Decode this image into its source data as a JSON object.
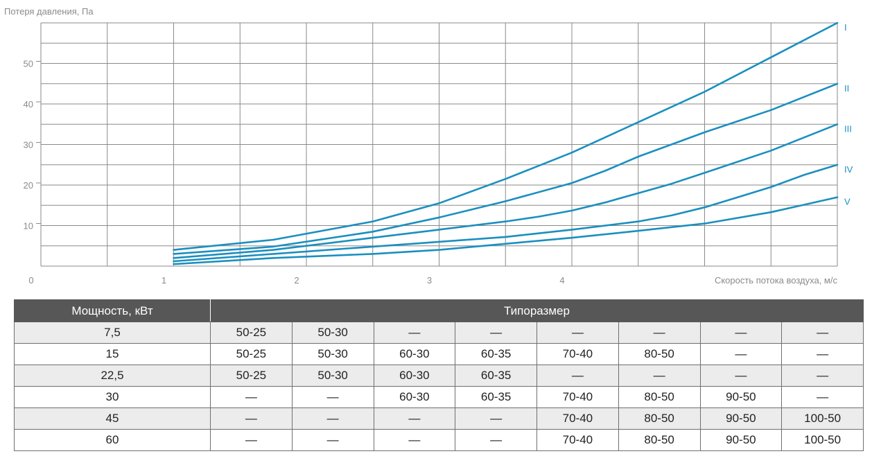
{
  "chart_data": {
    "type": "line",
    "ylabel": "Потеря давления, Па",
    "xlabel": "Скорость потока воздуха, м/с",
    "xlim": [
      0,
      6
    ],
    "ylim": [
      0,
      60
    ],
    "x_ticks": [
      "0",
      "1",
      "2",
      "3",
      "4"
    ],
    "y_ticks": [
      "10",
      "20",
      "30",
      "40",
      "50"
    ],
    "series_color": "#1a8fbf",
    "series": [
      {
        "name": "I",
        "x": [
          1,
          1.75,
          2.5,
          3,
          3.5,
          4,
          4.5,
          5,
          5.5,
          6
        ],
        "y": [
          4,
          6.5,
          11,
          15.5,
          21.5,
          28,
          35.5,
          43,
          51.5,
          60
        ]
      },
      {
        "name": "II",
        "x": [
          1,
          1.75,
          2.5,
          3,
          3.5,
          4,
          4.25,
          4.5,
          4.75,
          5,
          5.5,
          6
        ],
        "y": [
          3,
          4.8,
          8.5,
          12,
          16,
          20.5,
          23.5,
          27,
          30,
          33,
          38.5,
          45
        ]
      },
      {
        "name": "III",
        "x": [
          1,
          1.75,
          2.5,
          3,
          3.5,
          3.75,
          4,
          4.25,
          4.5,
          4.75,
          5,
          5.5,
          6
        ],
        "y": [
          2,
          4,
          7,
          9,
          11,
          12.2,
          13.7,
          15.7,
          18,
          20.3,
          23,
          28.5,
          35
        ]
      },
      {
        "name": "IV",
        "x": [
          1,
          1.75,
          2.5,
          3,
          3.5,
          4,
          4.5,
          4.75,
          5,
          5.25,
          5.5,
          5.75,
          6
        ],
        "y": [
          1.2,
          3,
          4.8,
          6,
          7.2,
          9,
          11,
          12.5,
          14.5,
          17,
          19.5,
          22.5,
          25
        ]
      },
      {
        "name": "V",
        "x": [
          1,
          1.75,
          2.5,
          3,
          3.5,
          4,
          4.5,
          5,
          5.5,
          6
        ],
        "y": [
          0.5,
          2,
          3,
          4,
          5.5,
          7,
          8.7,
          10.5,
          13.3,
          17
        ]
      }
    ]
  },
  "table": {
    "header": {
      "power": "Мощность, кВт",
      "size": "Типоразмер"
    },
    "rows": [
      {
        "power": "7,5",
        "sizes": [
          "50-25",
          "50-30",
          "—",
          "—",
          "—",
          "—",
          "—",
          "—"
        ]
      },
      {
        "power": "15",
        "sizes": [
          "50-25",
          "50-30",
          "60-30",
          "60-35",
          "70-40",
          "80-50",
          "—",
          "—"
        ]
      },
      {
        "power": "22,5",
        "sizes": [
          "50-25",
          "50-30",
          "60-30",
          "60-35",
          "—",
          "—",
          "—",
          "—"
        ]
      },
      {
        "power": "30",
        "sizes": [
          "—",
          "—",
          "60-30",
          "60-35",
          "70-40",
          "80-50",
          "90-50",
          "—"
        ]
      },
      {
        "power": "45",
        "sizes": [
          "—",
          "—",
          "—",
          "—",
          "70-40",
          "80-50",
          "90-50",
          "100-50"
        ]
      },
      {
        "power": "60",
        "sizes": [
          "—",
          "—",
          "—",
          "—",
          "70-40",
          "80-50",
          "90-50",
          "100-50"
        ]
      }
    ]
  }
}
